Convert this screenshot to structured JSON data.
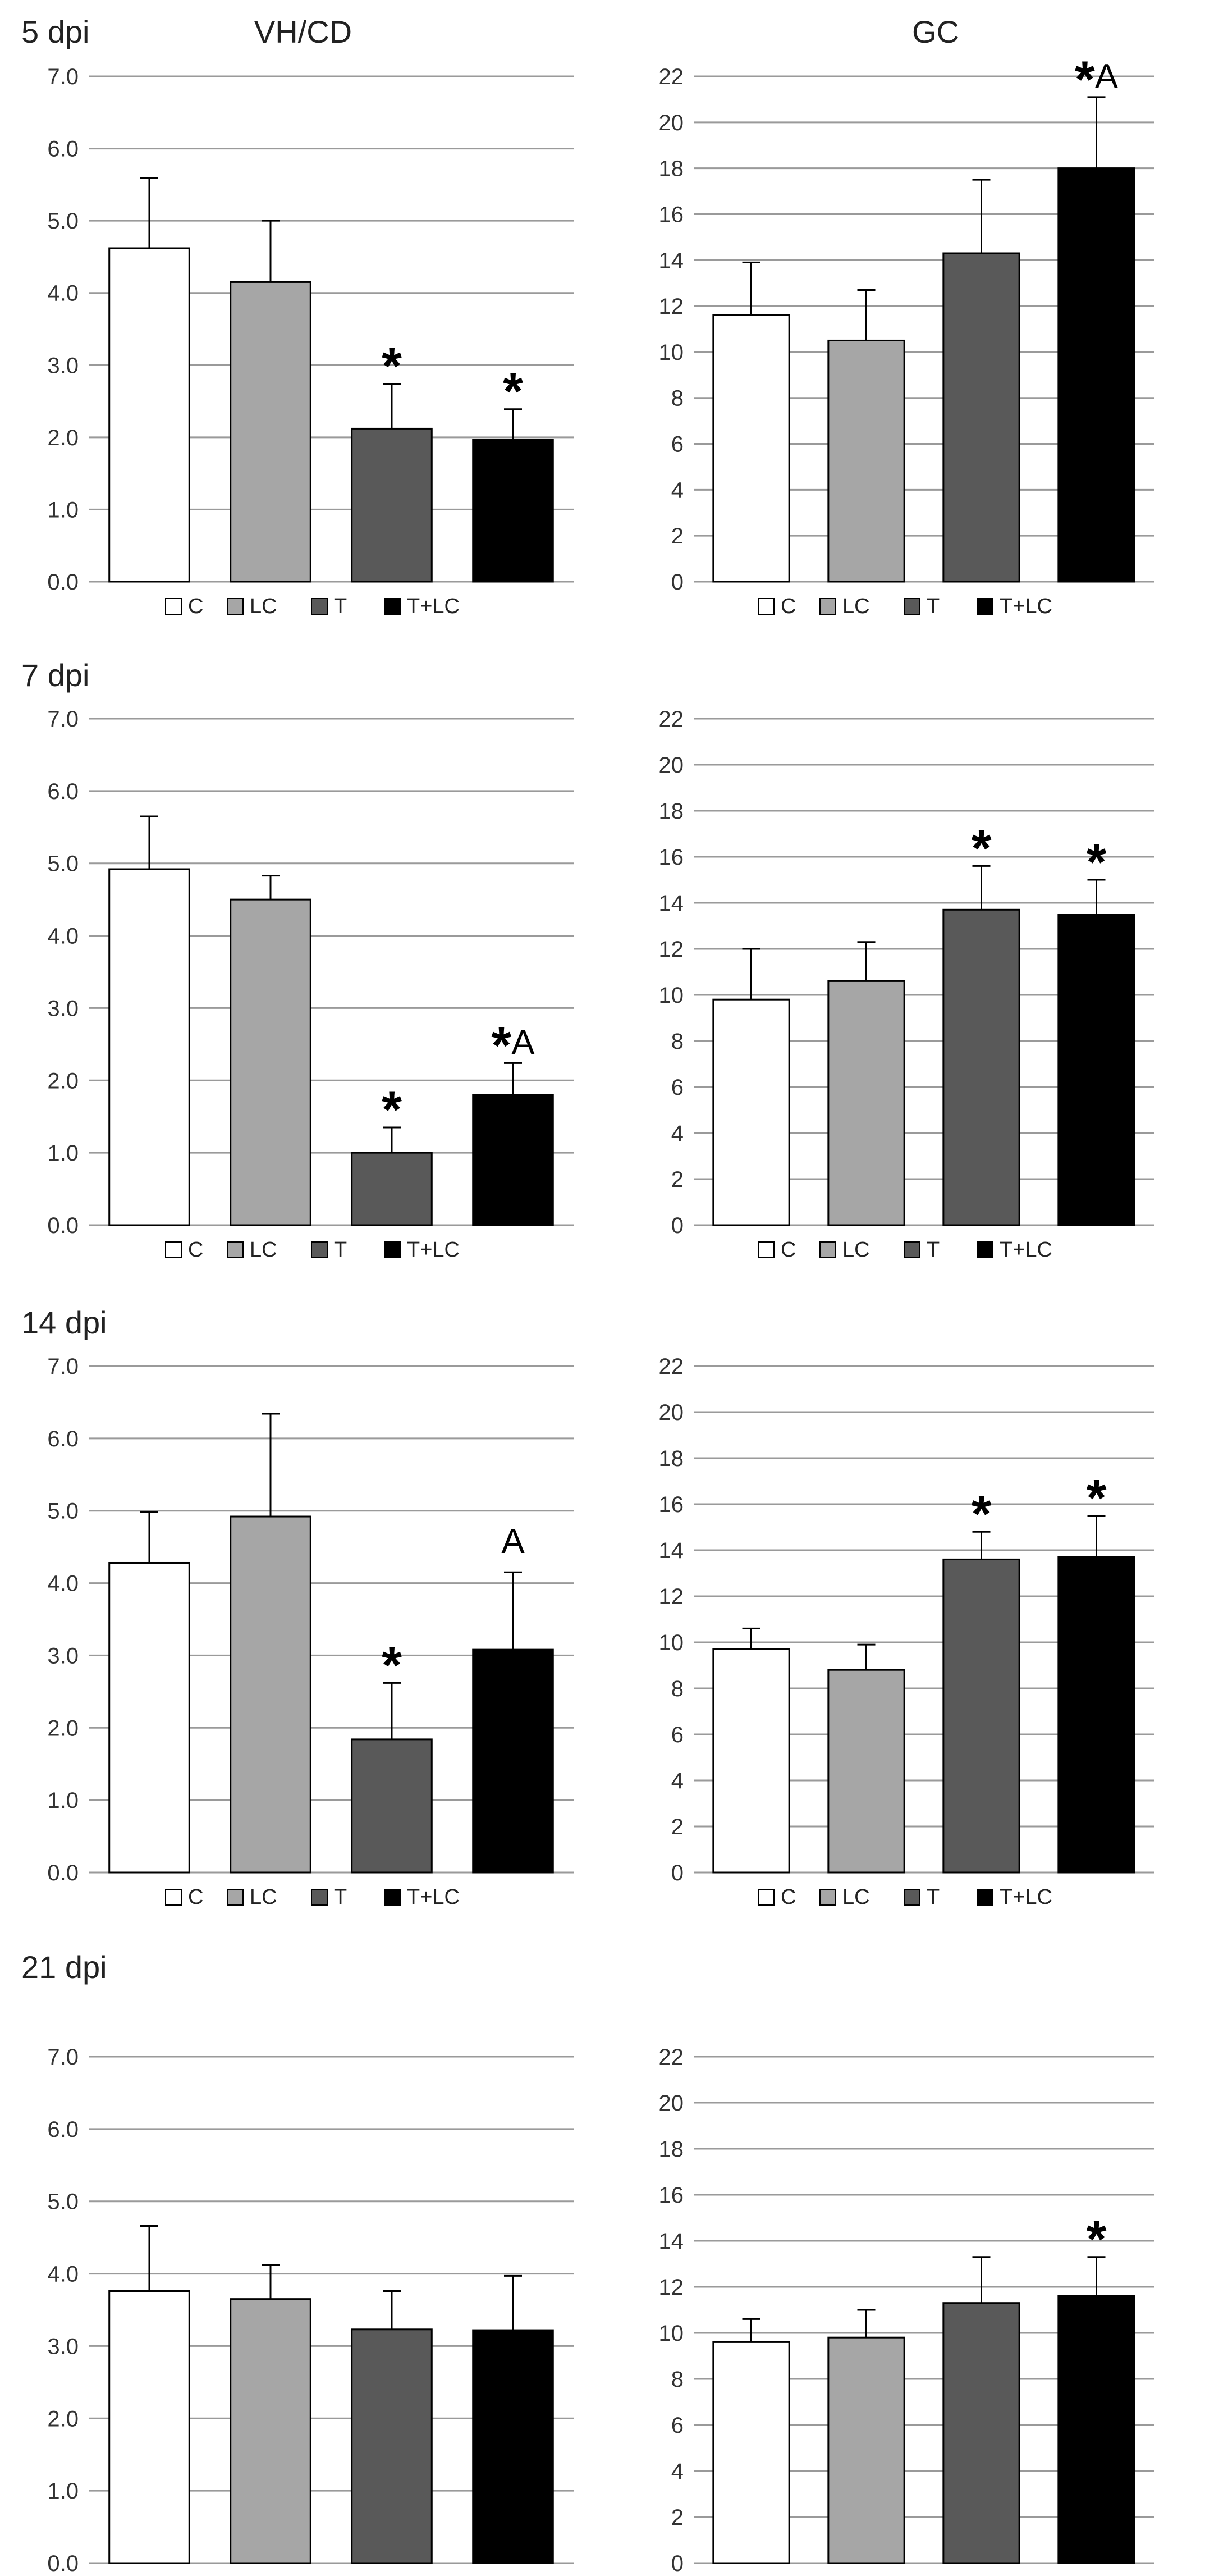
{
  "figure": {
    "column_titles": [
      "VH/CD",
      "GC"
    ],
    "row_labels": [
      "5 dpi",
      "7 dpi",
      "14 dpi",
      "21 dpi"
    ],
    "legend": [
      {
        "label": "C",
        "color": "#ffffff"
      },
      {
        "label": "LC",
        "color": "#a6a6a6"
      },
      {
        "label": "T",
        "color": "#595959"
      },
      {
        "label": "T+LC",
        "color": "#000000"
      }
    ]
  },
  "chart_data": [
    {
      "type": "bar",
      "panel": "5 dpi VH/CD",
      "title": "VH/CD",
      "categories": [
        "C",
        "LC",
        "T",
        "T+LC"
      ],
      "values": [
        4.62,
        4.15,
        2.12,
        1.97
      ],
      "errors": [
        0.97,
        0.85,
        0.62,
        0.42
      ],
      "annotations": [
        "",
        "",
        "*",
        "*"
      ],
      "ylim": [
        0,
        7
      ],
      "ystep": 1,
      "tick_format": "fixed1",
      "xlabel": "",
      "ylabel": ""
    },
    {
      "type": "bar",
      "panel": "5 dpi GC",
      "title": "GC",
      "categories": [
        "C",
        "LC",
        "T",
        "T+LC"
      ],
      "values": [
        11.6,
        10.5,
        14.3,
        18.0
      ],
      "errors": [
        2.3,
        2.2,
        3.2,
        3.1
      ],
      "annotations": [
        "",
        "",
        "",
        "*A"
      ],
      "ylim": [
        0,
        22
      ],
      "ystep": 2,
      "tick_format": "int",
      "xlabel": "",
      "ylabel": ""
    },
    {
      "type": "bar",
      "panel": "7 dpi VH/CD",
      "categories": [
        "C",
        "LC",
        "T",
        "T+LC"
      ],
      "values": [
        4.92,
        4.5,
        1.0,
        1.8
      ],
      "errors": [
        0.73,
        0.33,
        0.35,
        0.44
      ],
      "annotations": [
        "",
        "",
        "*",
        "*A"
      ],
      "ylim": [
        0,
        7
      ],
      "ystep": 1,
      "tick_format": "fixed1",
      "xlabel": "",
      "ylabel": ""
    },
    {
      "type": "bar",
      "panel": "7 dpi GC",
      "categories": [
        "C",
        "LC",
        "T",
        "T+LC"
      ],
      "values": [
        9.8,
        10.6,
        13.7,
        13.5
      ],
      "errors": [
        2.2,
        1.7,
        1.9,
        1.5
      ],
      "annotations": [
        "",
        "",
        "*",
        "*"
      ],
      "ylim": [
        0,
        22
      ],
      "ystep": 2,
      "tick_format": "int",
      "xlabel": "",
      "ylabel": ""
    },
    {
      "type": "bar",
      "panel": "14 dpi VH/CD",
      "categories": [
        "C",
        "LC",
        "T",
        "T+LC"
      ],
      "values": [
        4.28,
        4.92,
        1.84,
        3.08
      ],
      "errors": [
        0.7,
        1.42,
        0.78,
        1.07
      ],
      "annotations": [
        "",
        "",
        "*",
        "A"
      ],
      "ylim": [
        0,
        7
      ],
      "ystep": 1,
      "tick_format": "fixed1",
      "xlabel": "",
      "ylabel": ""
    },
    {
      "type": "bar",
      "panel": "14 dpi GC",
      "categories": [
        "C",
        "LC",
        "T",
        "T+LC"
      ],
      "values": [
        9.7,
        8.8,
        13.6,
        13.7
      ],
      "errors": [
        0.9,
        1.1,
        1.2,
        1.8
      ],
      "annotations": [
        "",
        "",
        "*",
        "*"
      ],
      "ylim": [
        0,
        22
      ],
      "ystep": 2,
      "tick_format": "int",
      "xlabel": "",
      "ylabel": ""
    },
    {
      "type": "bar",
      "panel": "21 dpi VH/CD",
      "categories": [
        "C",
        "LC",
        "T",
        "T+LC"
      ],
      "values": [
        3.76,
        3.65,
        3.23,
        3.22
      ],
      "errors": [
        0.9,
        0.47,
        0.53,
        0.75
      ],
      "annotations": [
        "",
        "",
        "",
        ""
      ],
      "ylim": [
        0,
        7
      ],
      "ystep": 1,
      "tick_format": "fixed1",
      "xlabel": "",
      "ylabel": ""
    },
    {
      "type": "bar",
      "panel": "21 dpi GC",
      "categories": [
        "C",
        "LC",
        "T",
        "T+LC"
      ],
      "values": [
        9.6,
        9.8,
        11.3,
        11.6
      ],
      "errors": [
        1.0,
        1.2,
        2.0,
        1.7
      ],
      "annotations": [
        "",
        "",
        "",
        "*"
      ],
      "ylim": [
        0,
        22
      ],
      "ystep": 2,
      "tick_format": "int",
      "xlabel": "",
      "ylabel": ""
    }
  ]
}
